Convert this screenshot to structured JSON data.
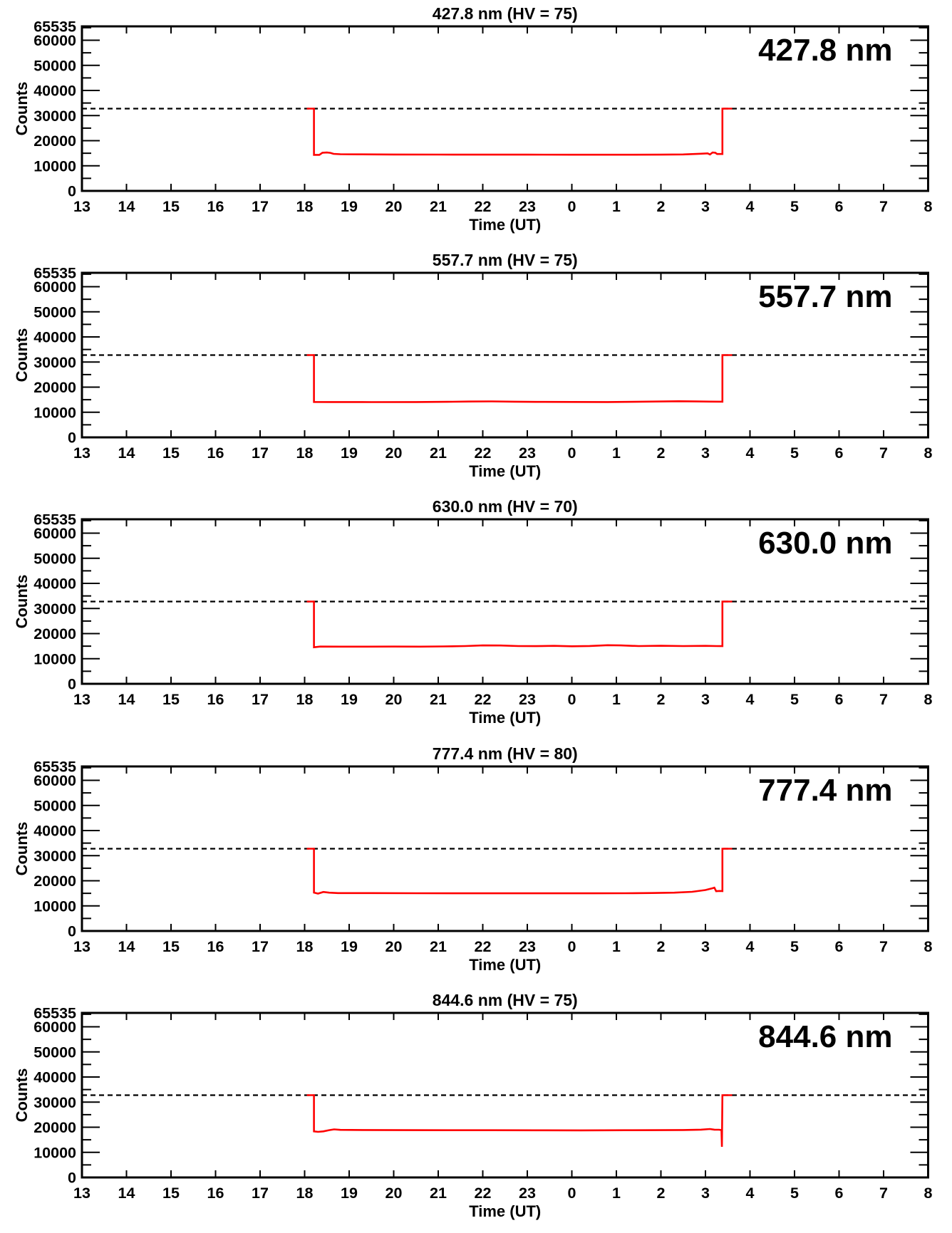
{
  "figure_title": "Photometer counts vs time for five wavelength channels",
  "colors": {
    "frame": "#000000",
    "text": "#000000",
    "curve": "#ff0000",
    "threshold": "#000000",
    "background": "#ffffff"
  },
  "chart_data": [
    {
      "type": "line",
      "title": "427.8 nm (HV = 75)",
      "corner_label": "427.8 nm",
      "xlabel": "Time (UT)",
      "ylabel": "Counts",
      "xlim_hours": [
        13,
        32
      ],
      "x_tick_labels": [
        "13",
        "14",
        "15",
        "16",
        "17",
        "18",
        "19",
        "20",
        "21",
        "22",
        "23",
        "0",
        "1",
        "2",
        "3",
        "4",
        "5",
        "6",
        "7",
        "8"
      ],
      "ylim": [
        0,
        65535
      ],
      "y_major_ticks": [
        0,
        10000,
        20000,
        30000,
        40000,
        50000,
        60000,
        65535
      ],
      "y_minor_step": 5000,
      "grid": false,
      "threshold": {
        "value": 32768,
        "style": "dashed"
      },
      "series": [
        {
          "name": "counts",
          "color": "#ff0000",
          "points": [
            [
              18.05,
              32768
            ],
            [
              18.21,
              32768
            ],
            [
              18.21,
              14350
            ],
            [
              18.33,
              14350
            ],
            [
              18.4,
              15200
            ],
            [
              18.5,
              15300
            ],
            [
              18.58,
              15150
            ],
            [
              18.65,
              14750
            ],
            [
              18.8,
              14600
            ],
            [
              19.2,
              14550
            ],
            [
              20.0,
              14500
            ],
            [
              21.0,
              14480
            ],
            [
              22.0,
              14450
            ],
            [
              23.0,
              14430
            ],
            [
              24.0,
              14400
            ],
            [
              25.0,
              14410
            ],
            [
              26.0,
              14430
            ],
            [
              26.5,
              14520
            ],
            [
              26.9,
              14800
            ],
            [
              27.05,
              14950
            ],
            [
              27.1,
              14500
            ],
            [
              27.16,
              15300
            ],
            [
              27.22,
              15200
            ],
            [
              27.26,
              14700
            ],
            [
              27.38,
              14700
            ],
            [
              27.38,
              32768
            ],
            [
              27.6,
              32768
            ]
          ]
        }
      ]
    },
    {
      "type": "line",
      "title": "557.7 nm (HV = 75)",
      "corner_label": "557.7 nm",
      "xlabel": "Time (UT)",
      "ylabel": "Counts",
      "xlim_hours": [
        13,
        32
      ],
      "x_tick_labels": [
        "13",
        "14",
        "15",
        "16",
        "17",
        "18",
        "19",
        "20",
        "21",
        "22",
        "23",
        "0",
        "1",
        "2",
        "3",
        "4",
        "5",
        "6",
        "7",
        "8"
      ],
      "ylim": [
        0,
        65535
      ],
      "y_major_ticks": [
        0,
        10000,
        20000,
        30000,
        40000,
        50000,
        60000,
        65535
      ],
      "y_minor_step": 5000,
      "grid": false,
      "threshold": {
        "value": 32768,
        "style": "dashed"
      },
      "series": [
        {
          "name": "counts",
          "color": "#ff0000",
          "points": [
            [
              18.05,
              32768
            ],
            [
              18.21,
              32768
            ],
            [
              18.21,
              14100
            ],
            [
              18.6,
              14060
            ],
            [
              19.5,
              14050
            ],
            [
              20.5,
              14070
            ],
            [
              21.2,
              14150
            ],
            [
              21.7,
              14280
            ],
            [
              22.2,
              14320
            ],
            [
              22.7,
              14200
            ],
            [
              23.2,
              14120
            ],
            [
              24.0,
              14090
            ],
            [
              24.8,
              14080
            ],
            [
              25.4,
              14160
            ],
            [
              25.9,
              14280
            ],
            [
              26.4,
              14370
            ],
            [
              26.8,
              14300
            ],
            [
              27.1,
              14240
            ],
            [
              27.38,
              14200
            ],
            [
              27.38,
              32768
            ],
            [
              27.6,
              32768
            ]
          ]
        }
      ]
    },
    {
      "type": "line",
      "title": "630.0 nm (HV = 70)",
      "corner_label": "630.0 nm",
      "xlabel": "Time (UT)",
      "ylabel": "Counts",
      "xlim_hours": [
        13,
        32
      ],
      "x_tick_labels": [
        "13",
        "14",
        "15",
        "16",
        "17",
        "18",
        "19",
        "20",
        "21",
        "22",
        "23",
        "0",
        "1",
        "2",
        "3",
        "4",
        "5",
        "6",
        "7",
        "8"
      ],
      "ylim": [
        0,
        65535
      ],
      "y_major_ticks": [
        0,
        10000,
        20000,
        30000,
        40000,
        50000,
        60000,
        65535
      ],
      "y_minor_step": 5000,
      "grid": false,
      "threshold": {
        "value": 32768,
        "style": "dashed"
      },
      "series": [
        {
          "name": "counts",
          "color": "#ff0000",
          "points": [
            [
              18.05,
              32768
            ],
            [
              18.21,
              32768
            ],
            [
              18.21,
              14550
            ],
            [
              18.35,
              14850
            ],
            [
              18.8,
              14820
            ],
            [
              19.4,
              14800
            ],
            [
              20.0,
              14850
            ],
            [
              20.6,
              14820
            ],
            [
              21.1,
              14900
            ],
            [
              21.6,
              15050
            ],
            [
              22.0,
              15300
            ],
            [
              22.4,
              15250
            ],
            [
              22.8,
              15050
            ],
            [
              23.2,
              15000
            ],
            [
              23.6,
              15120
            ],
            [
              24.0,
              14950
            ],
            [
              24.4,
              15060
            ],
            [
              24.8,
              15380
            ],
            [
              25.1,
              15300
            ],
            [
              25.5,
              15050
            ],
            [
              26.0,
              15150
            ],
            [
              26.5,
              15050
            ],
            [
              27.0,
              15120
            ],
            [
              27.25,
              15050
            ],
            [
              27.38,
              15000
            ],
            [
              27.38,
              32768
            ],
            [
              27.6,
              32768
            ]
          ]
        }
      ]
    },
    {
      "type": "line",
      "title": "777.4 nm (HV = 80)",
      "corner_label": "777.4 nm",
      "xlabel": "Time (UT)",
      "ylabel": "Counts",
      "xlim_hours": [
        13,
        32
      ],
      "x_tick_labels": [
        "13",
        "14",
        "15",
        "16",
        "17",
        "18",
        "19",
        "20",
        "21",
        "22",
        "23",
        "0",
        "1",
        "2",
        "3",
        "4",
        "5",
        "6",
        "7",
        "8"
      ],
      "ylim": [
        0,
        65535
      ],
      "y_major_ticks": [
        0,
        10000,
        20000,
        30000,
        40000,
        50000,
        60000,
        65535
      ],
      "y_minor_step": 5000,
      "grid": false,
      "threshold": {
        "value": 32768,
        "style": "dashed"
      },
      "series": [
        {
          "name": "counts",
          "color": "#ff0000",
          "points": [
            [
              18.05,
              32768
            ],
            [
              18.21,
              32768
            ],
            [
              18.21,
              15300
            ],
            [
              18.3,
              14900
            ],
            [
              18.42,
              15550
            ],
            [
              18.55,
              15250
            ],
            [
              18.75,
              15100
            ],
            [
              19.5,
              15080
            ],
            [
              20.5,
              15050
            ],
            [
              21.5,
              15020
            ],
            [
              22.5,
              15010
            ],
            [
              23.5,
              15000
            ],
            [
              24.5,
              15000
            ],
            [
              25.2,
              15030
            ],
            [
              25.8,
              15110
            ],
            [
              26.3,
              15260
            ],
            [
              26.7,
              15600
            ],
            [
              27.0,
              16300
            ],
            [
              27.15,
              17000
            ],
            [
              27.2,
              17250
            ],
            [
              27.24,
              15850
            ],
            [
              27.32,
              15950
            ],
            [
              27.38,
              15900
            ],
            [
              27.38,
              32768
            ],
            [
              27.6,
              32768
            ]
          ]
        }
      ]
    },
    {
      "type": "line",
      "title": "844.6 nm (HV = 75)",
      "corner_label": "844.6 nm",
      "xlabel": "Time (UT)",
      "ylabel": "Counts",
      "xlim_hours": [
        13,
        32
      ],
      "x_tick_labels": [
        "13",
        "14",
        "15",
        "16",
        "17",
        "18",
        "19",
        "20",
        "21",
        "22",
        "23",
        "0",
        "1",
        "2",
        "3",
        "4",
        "5",
        "6",
        "7",
        "8"
      ],
      "ylim": [
        0,
        65535
      ],
      "y_major_ticks": [
        0,
        10000,
        20000,
        30000,
        40000,
        50000,
        60000,
        65535
      ],
      "y_minor_step": 5000,
      "grid": false,
      "threshold": {
        "value": 32768,
        "style": "dashed"
      },
      "series": [
        {
          "name": "counts",
          "color": "#ff0000",
          "points": [
            [
              18.05,
              32768
            ],
            [
              18.21,
              32768
            ],
            [
              18.21,
              18350
            ],
            [
              18.3,
              18150
            ],
            [
              18.42,
              18350
            ],
            [
              18.55,
              18850
            ],
            [
              18.66,
              19150
            ],
            [
              18.8,
              18950
            ],
            [
              19.3,
              18900
            ],
            [
              20.2,
              18850
            ],
            [
              21.2,
              18820
            ],
            [
              22.2,
              18800
            ],
            [
              23.2,
              18780
            ],
            [
              24.2,
              18760
            ],
            [
              25.2,
              18800
            ],
            [
              26.0,
              18830
            ],
            [
              26.5,
              18900
            ],
            [
              26.9,
              19050
            ],
            [
              27.1,
              19300
            ],
            [
              27.2,
              19050
            ],
            [
              27.3,
              19000
            ],
            [
              27.36,
              18900
            ],
            [
              27.37,
              12200
            ],
            [
              27.38,
              32768
            ],
            [
              27.6,
              32768
            ]
          ]
        }
      ]
    }
  ]
}
